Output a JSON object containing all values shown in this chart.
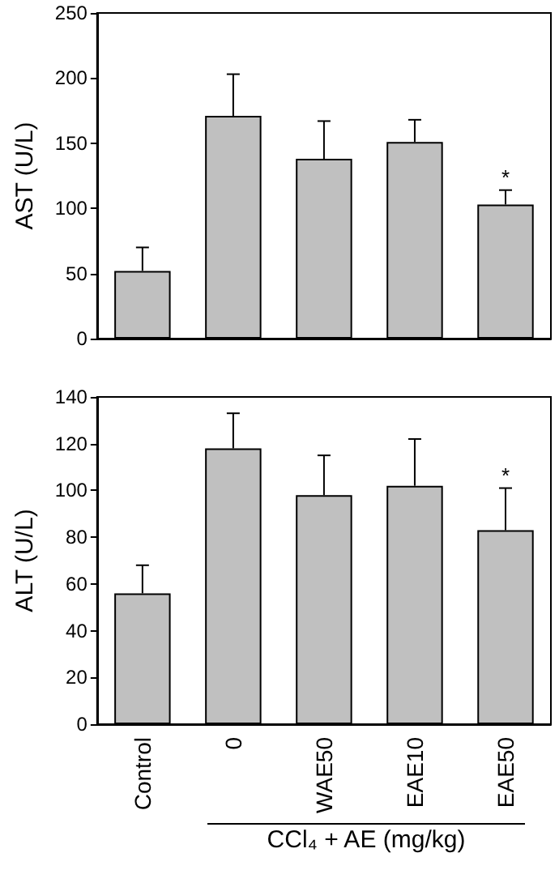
{
  "chart_data": [
    {
      "type": "bar",
      "ylabel": "AST (U/L)",
      "categories": [
        "Control",
        "0",
        "WAE50",
        "EAE10",
        "EAE50"
      ],
      "values": [
        52,
        171,
        138,
        151,
        103
      ],
      "errors": [
        18,
        32,
        29,
        17,
        11
      ],
      "color": "#c0c0c0",
      "ylim": [
        0,
        250
      ],
      "yticks": [
        0,
        50,
        100,
        150,
        200,
        250
      ],
      "grid": false,
      "tick_labels": "y",
      "annotations": [
        {
          "text": "*",
          "x": "EAE50",
          "y": 114
        }
      ]
    },
    {
      "type": "bar",
      "ylabel": "ALT (U/L)",
      "xlabel": "CCl₄ + AE (mg/kg)",
      "categories": [
        "Control",
        "0",
        "WAE50",
        "EAE10",
        "EAE50"
      ],
      "values": [
        56,
        118,
        98,
        102,
        83
      ],
      "errors": [
        12,
        15,
        17,
        20,
        18
      ],
      "color": "#c0c0c0",
      "ylim": [
        0,
        140
      ],
      "yticks": [
        0,
        20,
        40,
        60,
        80,
        100,
        120,
        140
      ],
      "grid": false,
      "annotations": [
        {
          "text": "*",
          "x": "EAE50",
          "y": 101
        }
      ]
    }
  ]
}
